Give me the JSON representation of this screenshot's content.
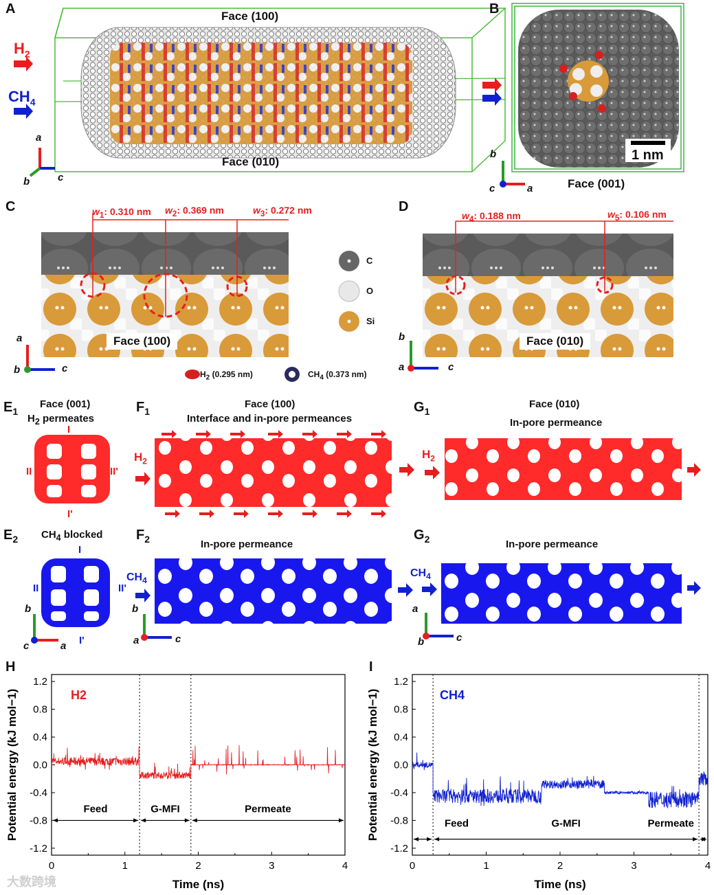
{
  "panels": {
    "A": {
      "label": "A",
      "face_top": "Face (100)",
      "face_bottom": "Face (010)",
      "gas1": "H",
      "gas1_sub": "2",
      "gas2": "CH",
      "gas2_sub": "4",
      "axes": [
        "a",
        "b",
        "c"
      ]
    },
    "B": {
      "label": "B",
      "scale": "1 nm",
      "face": "Face (001)",
      "axes": [
        "b",
        "c",
        "a"
      ]
    },
    "C": {
      "label": "C",
      "w1": "0.310 nm",
      "w2": "0.369 nm",
      "w3": "0.272 nm",
      "face": "Face (100)",
      "axes": [
        "a",
        "b",
        "c"
      ]
    },
    "D": {
      "label": "D",
      "w4": "0.188 nm",
      "w5": "0.106 nm",
      "face": "Face (010)",
      "axes": [
        "b",
        "a",
        "c"
      ]
    },
    "legend": {
      "C": "C",
      "O": "O",
      "Si": "Si",
      "h2": "H",
      "h2_sub": "2",
      "h2_size": " (0.295 nm)",
      "ch4": "CH",
      "ch4_sub": "4",
      "ch4_size": " (0.373 nm)"
    },
    "E1": {
      "label": "E",
      "sub": "1",
      "face": "Face (001)",
      "caption": "H",
      "caption_sub": "2",
      "caption_rest": " permeates",
      "I": "I",
      "II": "II",
      "IIp": "II'",
      "Ip": "I'"
    },
    "F1": {
      "label": "F",
      "sub": "1",
      "face": "Face (100)",
      "caption": "Interface and in-pore permeances",
      "gas": "H",
      "gas_sub": "2"
    },
    "G1": {
      "label": "G",
      "sub": "1",
      "face": "Face (010)",
      "caption": "In-pore permeance",
      "gas": "H",
      "gas_sub": "2"
    },
    "E2": {
      "label": "E",
      "sub": "2",
      "caption": "CH",
      "caption_sub": "4",
      "caption_rest": " blocked",
      "I": "I",
      "II": "II",
      "IIp": "II'",
      "Ip": "I'",
      "axes": [
        "b",
        "c",
        "a"
      ]
    },
    "F2": {
      "label": "F",
      "sub": "2",
      "caption": "In-pore permeance",
      "gas": "CH",
      "gas_sub": "4",
      "axes": [
        "b",
        "a",
        "c"
      ]
    },
    "G2": {
      "label": "G",
      "sub": "2",
      "caption": "In-pore permeance",
      "gas": "CH",
      "gas_sub": "4",
      "axes": [
        "a",
        "b",
        "c"
      ]
    }
  },
  "chart_data": [
    {
      "type": "line",
      "panel": "H",
      "series_label": "H2",
      "xlabel": "Time (ns)",
      "ylabel": "Potential energy (kJ mol−1)",
      "xlim": [
        0,
        4
      ],
      "ylim": [
        -1.3,
        1.3
      ],
      "xticks": [
        "0",
        "1",
        "2",
        "3",
        "4"
      ],
      "yticks": [
        "1.2",
        "0.8",
        "0.4",
        "0.0",
        "-0.4",
        "-0.8",
        "-1.2"
      ],
      "color": "#e61e1e",
      "dividers": [
        1.2,
        1.9
      ],
      "regions": [
        {
          "name": "Feed",
          "from": 0,
          "to": 1.2
        },
        {
          "name": "G-MFI",
          "from": 1.2,
          "to": 1.9
        },
        {
          "name": "Permeate",
          "from": 1.9,
          "to": 4
        }
      ],
      "segments": [
        {
          "from": 0,
          "to": 1.2,
          "mean": 0.05,
          "noise": 0.06,
          "spike": 0.35
        },
        {
          "from": 1.2,
          "to": 1.9,
          "mean": -0.15,
          "noise": 0.05,
          "spike": 0.3
        },
        {
          "from": 1.9,
          "to": 4,
          "mean": 0.0,
          "noise": 0.005,
          "spike": 0.45
        }
      ]
    },
    {
      "type": "line",
      "panel": "I",
      "series_label": "CH4",
      "xlabel": "Time (ns)",
      "ylabel": "Potential energy (kJ mol−1)",
      "xlim": [
        0,
        4
      ],
      "ylim": [
        -1.3,
        1.3
      ],
      "xticks": [
        "0",
        "1",
        "2",
        "3",
        "4"
      ],
      "yticks": [
        "1.2",
        "0.8",
        "0.4",
        "0.0",
        "-0.4",
        "-0.8",
        "-1.2"
      ],
      "color": "#1020d0",
      "dividers": [
        0.28,
        3.88
      ],
      "regions": [
        {
          "name": "Feed",
          "from": 0,
          "to": 0.28
        },
        {
          "name": "G-MFI",
          "from": 0.28,
          "to": 3.88
        },
        {
          "name": "Permeate",
          "from": 3.88,
          "to": 4
        }
      ],
      "segments": [
        {
          "from": 0,
          "to": 0.28,
          "mean": 0.0,
          "noise": 0.04,
          "spike": 0.85
        },
        {
          "from": 0.28,
          "to": 1.75,
          "mean": -0.45,
          "noise": 0.1,
          "spike": 0.45
        },
        {
          "from": 1.75,
          "to": 2.6,
          "mean": -0.28,
          "noise": 0.06,
          "spike": 0.2
        },
        {
          "from": 2.6,
          "to": 3.2,
          "mean": -0.4,
          "noise": 0.02,
          "spike": 0.05
        },
        {
          "from": 3.2,
          "to": 3.88,
          "mean": -0.5,
          "noise": 0.12,
          "spike": 0.3
        },
        {
          "from": 3.88,
          "to": 4,
          "mean": -0.2,
          "noise": 0.1,
          "spike": 0.2
        }
      ]
    }
  ],
  "watermark": "大数跨境"
}
